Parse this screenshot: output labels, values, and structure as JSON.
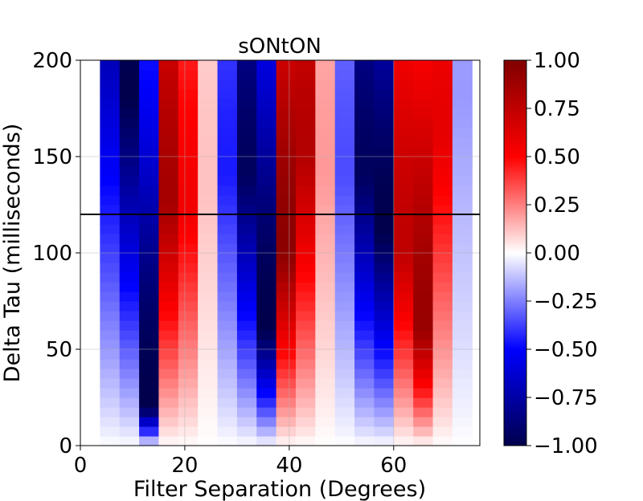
{
  "chart_data": {
    "type": "heatmap",
    "title": "sONtON",
    "xlabel": "Filter Separation (Degrees)",
    "ylabel": "Delta Tau (milliseconds)",
    "xlim": [
      0,
      76.5
    ],
    "ylim": [
      0,
      200
    ],
    "xticks": [
      "0",
      "20",
      "40",
      "60"
    ],
    "yticks": [
      "0",
      "50",
      "100",
      "150",
      "200"
    ],
    "grid": true,
    "colormap": "seismic",
    "clim": [
      -1,
      1
    ],
    "colorbar_ticks": [
      "1.00",
      "0.75",
      "0.50",
      "0.25",
      "0.00",
      "−0.25",
      "−0.50",
      "−0.75",
      "−1.00"
    ],
    "hline_y": 120,
    "column_width_deg": 3.75,
    "row_height_ms": 5,
    "column_x_centers": [
      1.875,
      5.625,
      9.375,
      13.125,
      16.875,
      20.625,
      24.375,
      28.125,
      31.875,
      35.625,
      39.375,
      43.125,
      46.875,
      50.625,
      54.375,
      58.125,
      61.875,
      65.625,
      69.375,
      73.125
    ],
    "columns": [
      {
        "x": 1.875,
        "peak_value": 0.0,
        "peak_tau": 60
      },
      {
        "x": 5.625,
        "peak_value": -0.7,
        "peak_tau": 200
      },
      {
        "x": 9.375,
        "peak_value": -1.0,
        "peak_tau": 180
      },
      {
        "x": 13.125,
        "peak_value": -1.0,
        "peak_tau": 20
      },
      {
        "x": 16.875,
        "peak_value": 0.85,
        "peak_tau": 125
      },
      {
        "x": 20.625,
        "peak_value": 0.55,
        "peak_tau": 120
      },
      {
        "x": 24.375,
        "peak_value": 0.12,
        "peak_tau": 130
      },
      {
        "x": 28.125,
        "peak_value": -0.45,
        "peak_tau": 140
      },
      {
        "x": 31.875,
        "peak_value": -0.95,
        "peak_tau": 140
      },
      {
        "x": 35.625,
        "peak_value": -1.0,
        "peak_tau": 60
      },
      {
        "x": 39.375,
        "peak_value": 0.95,
        "peak_tau": 100
      },
      {
        "x": 43.125,
        "peak_value": 0.8,
        "peak_tau": 150
      },
      {
        "x": 46.875,
        "peak_value": 0.2,
        "peak_tau": 140
      },
      {
        "x": 50.625,
        "peak_value": -0.35,
        "peak_tau": 140
      },
      {
        "x": 54.375,
        "peak_value": -0.95,
        "peak_tau": 140
      },
      {
        "x": 58.125,
        "peak_value": -1.0,
        "peak_tau": 110
      },
      {
        "x": 61.875,
        "peak_value": 0.75,
        "peak_tau": 100
      },
      {
        "x": 65.625,
        "peak_value": 0.9,
        "peak_tau": 60
      },
      {
        "x": 69.375,
        "peak_value": 0.6,
        "peak_tau": 160
      },
      {
        "x": 73.125,
        "peak_value": -0.2,
        "peak_tau": 180
      }
    ]
  }
}
